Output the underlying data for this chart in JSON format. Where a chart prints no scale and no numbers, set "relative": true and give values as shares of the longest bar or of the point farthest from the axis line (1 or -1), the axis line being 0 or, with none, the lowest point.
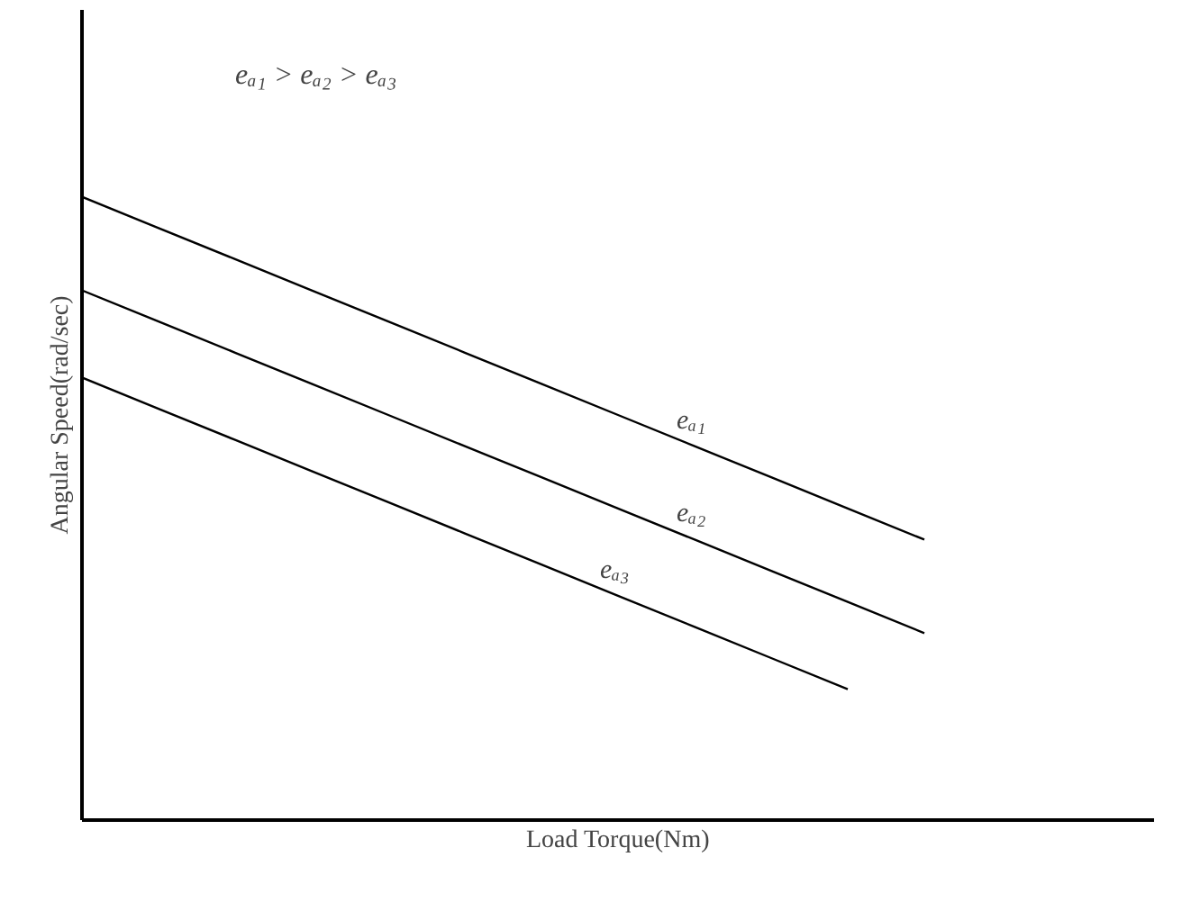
{
  "chart_data": {
    "type": "line",
    "relative": true,
    "xlabel": "Load Torque(Nm)",
    "ylabel": "Angular Speed(rad/sec)",
    "categories": [
      null,
      null,
      null,
      null,
      null,
      null,
      null,
      null,
      null,
      null,
      null,
      null,
      null
    ],
    "series": [
      {
        "name": "eₐ₁",
        "color": "#000000",
        "values": [
          1,
          0.95,
          0.9,
          0.85,
          0.8,
          0.75,
          0.7,
          0.65,
          0.6,
          0.55,
          0.5,
          0.45,
          null
        ]
      },
      {
        "name": "eₐ₂",
        "color": "#000000",
        "values": [
          0.85,
          0.8,
          0.75,
          0.7,
          0.65,
          0.6,
          0.55,
          0.5,
          0.45,
          0.4,
          0.35,
          0.3,
          null
        ]
      },
      {
        "name": "eₐ₃",
        "color": "#000000",
        "values": [
          0.71,
          0.66,
          0.61,
          0.56,
          0.51,
          0.46,
          0.41,
          0.36,
          0.31,
          0.26,
          0.21,
          null,
          null
        ]
      }
    ],
    "annotations": [
      "eₐ₁ > eₐ₂ > eₐ₃"
    ],
    "legend": false,
    "marker": "none",
    "line_style": "solid"
  }
}
